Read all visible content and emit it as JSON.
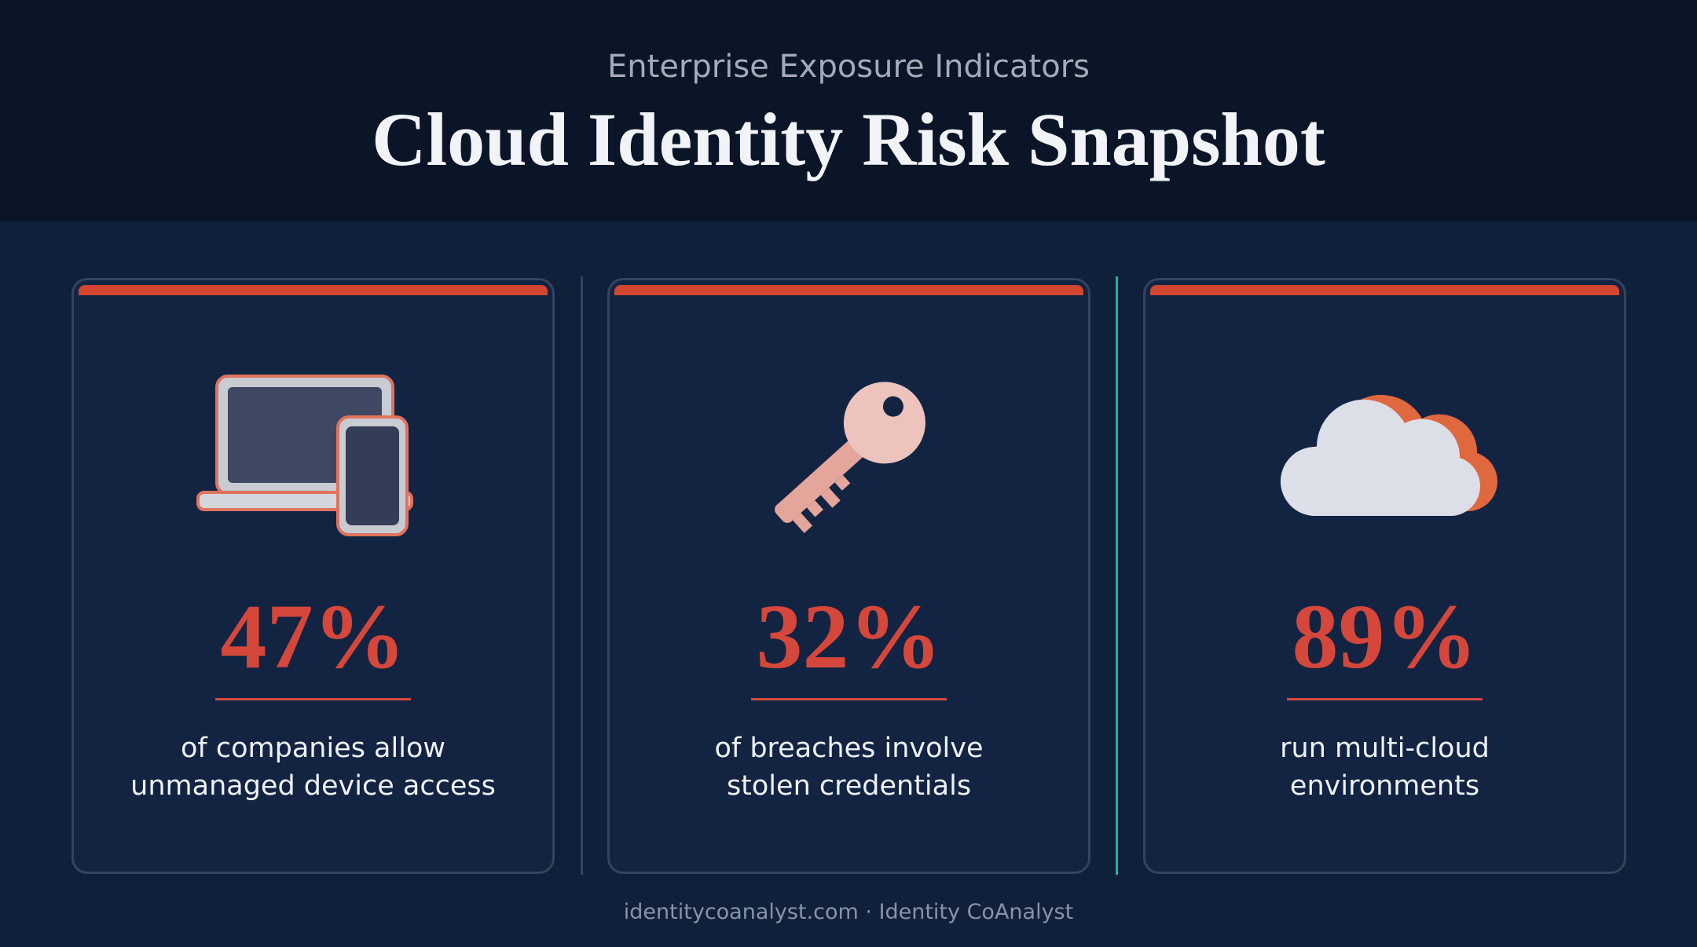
{
  "header": {
    "kicker": "Enterprise Exposure Indicators",
    "title": "Cloud Identity Risk Snapshot"
  },
  "cards": [
    {
      "stat": "47%",
      "description_lines": [
        "of companies allow",
        "unmanaged device access"
      ]
    },
    {
      "stat": "32%",
      "description_lines": [
        "of breaches involve",
        "stolen credentials"
      ]
    },
    {
      "stat": "89%",
      "description_lines": [
        "run multi-cloud",
        "environments"
      ]
    }
  ],
  "footer": "identitycoanalyst.com · Identity CoAnalyst"
}
